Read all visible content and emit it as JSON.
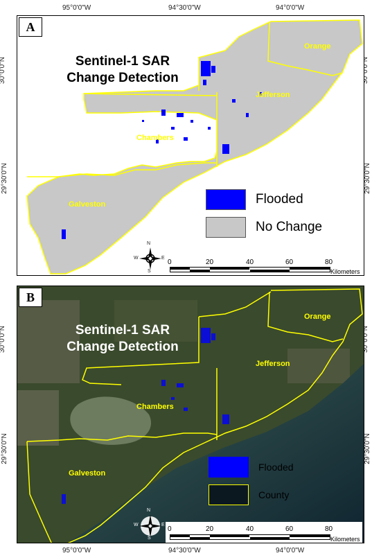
{
  "axes": {
    "top": [
      "95°0'0\"W",
      "94°30'0\"W",
      "94°0'0\"W"
    ],
    "bottom": [
      "95°0'0\"W",
      "94°30'0\"W",
      "94°0'0\"W"
    ],
    "left": [
      "30°0'0\"N",
      "29°30'0\"N"
    ],
    "right": [
      "30°0'0\"N",
      "29°30'0\"N"
    ]
  },
  "panel_a": {
    "label": "A",
    "title_line1": "Sentinel-1 SAR",
    "title_line2": "Change Detection",
    "legend": [
      {
        "label": "Flooded",
        "color": "#0000ff"
      },
      {
        "label": "No Change",
        "color": "#c8c8c8"
      }
    ],
    "counties": [
      "Orange",
      "Jefferson",
      "Chambers",
      "Galveston"
    ]
  },
  "panel_b": {
    "label": "B",
    "title_line1": "Sentinel-1 SAR",
    "title_line2": "Change Detection",
    "legend": [
      {
        "label": "Flooded",
        "color": "#0000ff"
      },
      {
        "label": "County",
        "color": "#ffff00"
      }
    ],
    "counties": [
      "Orange",
      "Jefferson",
      "Chambers",
      "Galveston"
    ]
  },
  "scale_bar": {
    "ticks": [
      "0",
      "20",
      "40",
      "60",
      "80"
    ],
    "unit": "Kilometers"
  },
  "north_arrow": {
    "n": "N",
    "s": "S",
    "e": "E",
    "w": "W"
  },
  "colors": {
    "county_outline": "#ffff00",
    "flood": "#0000ff",
    "no_change": "#c8c8c8"
  }
}
